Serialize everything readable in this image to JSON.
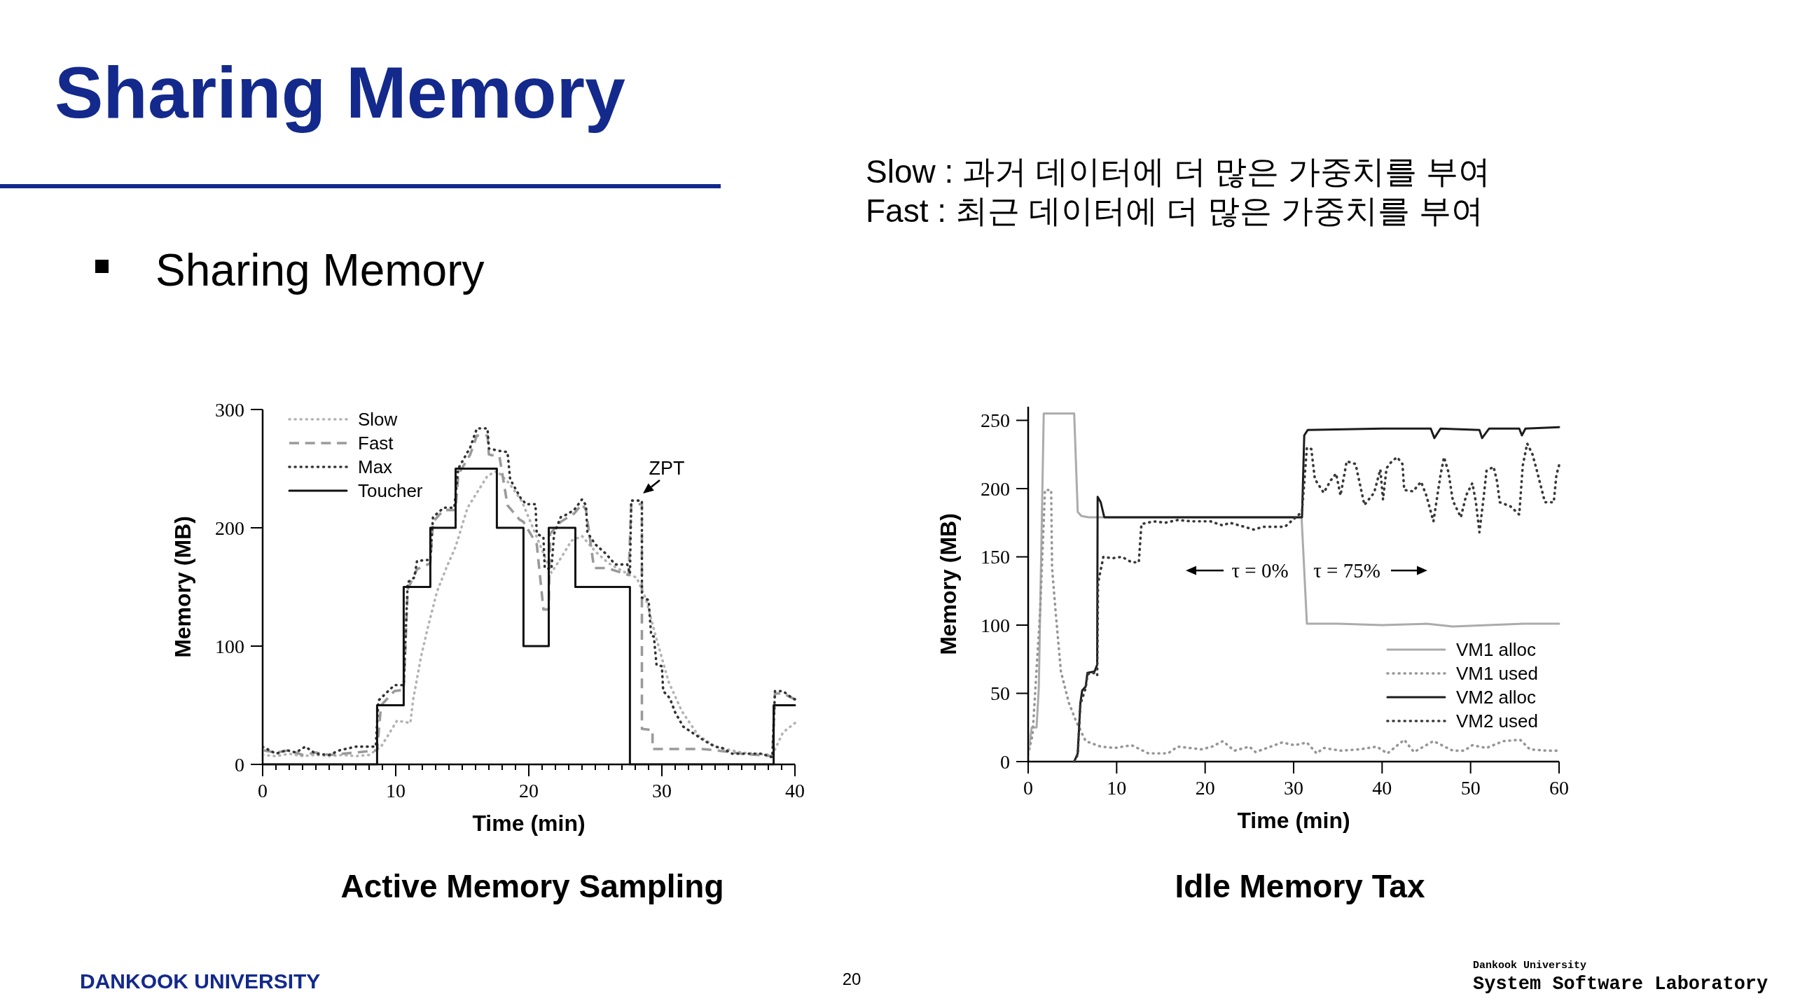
{
  "chart_data": [
    {
      "type": "other",
      "title": "Sharing Memory",
      "annotations": [
        "Sharing Memory",
        "Slow : 과거 데이터에 더 많은 가중치를 부여",
        "Fast : 최근 데이터에 더 많은 가중치를 부여",
        "20",
        "DANKOOK UNIVERSITY",
        "Dankook University",
        "System Software Laboratory"
      ]
    },
    {
      "type": "line",
      "title": "Active Memory Sampling",
      "xlabel": "Time (min)",
      "ylabel": "Memory (MB)",
      "xlim": [
        0,
        40
      ],
      "ylim": [
        0,
        300
      ],
      "xticks": [
        0,
        {
          "value": 1,
          "label": null
        },
        {
          "value": 2,
          "label": null
        },
        {
          "value": 3,
          "label": null
        },
        {
          "value": 4,
          "label": null
        },
        {
          "value": 5,
          "label": null
        },
        {
          "value": 6,
          "label": null
        },
        {
          "value": 7,
          "label": null
        },
        {
          "value": 8,
          "label": null
        },
        {
          "value": 9,
          "label": null
        },
        10,
        {
          "value": 11,
          "label": null
        },
        {
          "value": 12,
          "label": null
        },
        {
          "value": 13,
          "label": null
        },
        {
          "value": 14,
          "label": null
        },
        {
          "value": 15,
          "label": null
        },
        {
          "value": 16,
          "label": null
        },
        {
          "value": 17,
          "label": null
        },
        {
          "value": 18,
          "label": null
        },
        {
          "value": 19,
          "label": null
        },
        20,
        {
          "value": 21,
          "label": null
        },
        {
          "value": 22,
          "label": null
        },
        {
          "value": 23,
          "label": null
        },
        {
          "value": 24,
          "label": null
        },
        {
          "value": 25,
          "label": null
        },
        {
          "value": 26,
          "label": null
        },
        {
          "value": 27,
          "label": null
        },
        {
          "value": 28,
          "label": null
        },
        {
          "value": 29,
          "label": null
        },
        30,
        {
          "value": 31,
          "label": null
        },
        {
          "value": 32,
          "label": null
        },
        {
          "value": 33,
          "label": null
        },
        {
          "value": 34,
          "label": null
        },
        {
          "value": 35,
          "label": null
        },
        {
          "value": 36,
          "label": null
        },
        {
          "value": 37,
          "label": null
        },
        {
          "value": 38,
          "label": null
        },
        {
          "value": 39,
          "label": null
        },
        40
      ],
      "yticks": [
        0,
        100,
        200,
        300
      ],
      "legend": "top left",
      "annotations": [
        "ZPT"
      ],
      "series": [
        {
          "name": "Slow",
          "color": "#b3b3b3",
          "line_style": "dotted",
          "x": [
            0,
            1,
            2,
            3,
            4,
            5,
            6,
            7,
            8,
            8.9,
            10.1,
            11.1,
            11.3,
            11.9,
            12.4,
            13.1,
            13.8,
            14.5,
            15.4,
            16.9,
            17.6,
            18.5,
            19.5,
            20.5,
            21.7,
            22.5,
            23.2,
            24,
            25,
            26,
            27.6,
            28.1,
            28.8,
            29.5,
            30.5,
            31.5,
            32.7,
            34,
            36,
            38.3,
            39.1,
            40
          ],
          "values": [
            8,
            7,
            9,
            7,
            8,
            7,
            8,
            7,
            8,
            15,
            37,
            35,
            54,
            91,
            115,
            146,
            166,
            184,
            217,
            244,
            248,
            238,
            222,
            195,
            162,
            176,
            189,
            193,
            180,
            170,
            160,
            158,
            140,
            110,
            70,
            45,
            25,
            15,
            10,
            8,
            27,
            35
          ]
        },
        {
          "name": "Fast",
          "color": "#9a9a9a",
          "line_style": "dashed",
          "x": [
            0,
            1,
            2,
            3,
            4,
            5,
            6,
            7,
            8.6,
            8.9,
            9.9,
            10.6,
            10.9,
            11.6,
            12.6,
            12.8,
            13.6,
            14.5,
            14.7,
            15.6,
            16.1,
            16.9,
            17.0,
            17.8,
            18.4,
            19.3,
            19.6,
            20.6,
            21.1,
            21.5,
            21.6,
            22.4,
            23.4,
            24.0,
            24.3,
            24.9,
            25.9,
            27.5,
            27.7,
            28.5,
            28.5,
            29.3,
            29.3,
            33.0,
            34,
            36,
            38.3,
            38.5,
            39.1,
            40
          ],
          "values": [
            12,
            10,
            12,
            8,
            10,
            8,
            9,
            10,
            12,
            50,
            62,
            63,
            148,
            165,
            170,
            205,
            215,
            215,
            245,
            262,
            278,
            278,
            262,
            260,
            219,
            207,
            205,
            186,
            131,
            131,
            195,
            205,
            212,
            220,
            215,
            166,
            166,
            160,
            220,
            220,
            30,
            29,
            13,
            13,
            12,
            9,
            7,
            60,
            60,
            55
          ]
        },
        {
          "name": "Max",
          "color": "#333333",
          "line_style": "dotted",
          "x": [
            0,
            0.5,
            1,
            1.8,
            2.5,
            3.2,
            4,
            5,
            5.8,
            7,
            8.5,
            8.7,
            9.9,
            10.6,
            10.9,
            11.4,
            11.6,
            12.6,
            12.8,
            13.6,
            14.4,
            14.7,
            15.6,
            16.1,
            16.9,
            17.0,
            17.8,
            18.4,
            18.6,
            19.4,
            19.8,
            20.5,
            20.6,
            21.1,
            21.2,
            21.7,
            21.9,
            22.4,
            22.8,
            23.4,
            24.0,
            24.3,
            24.4,
            25.0,
            25.8,
            26.5,
            27.4,
            27.6,
            27.7,
            28.5,
            28.5,
            29.0,
            29.2,
            29.4,
            29.6,
            30.0,
            30.1,
            30.6,
            31.0,
            31.6,
            32.4,
            33.2,
            34.0,
            34.5,
            35.3,
            37.5,
            38.3,
            38.5,
            39.1,
            39.8,
            40
          ],
          "values": [
            15,
            12,
            9,
            12,
            10,
            15,
            9,
            8,
            12,
            15,
            15,
            54,
            67,
            67,
            154,
            158,
            172,
            173,
            209,
            217,
            217,
            250,
            268,
            284,
            284,
            267,
            265,
            264,
            241,
            225,
            220,
            220,
            195,
            192,
            166,
            165,
            195,
            209,
            211,
            215,
            224,
            219,
            196,
            186,
            178,
            169,
            169,
            161,
            223,
            223,
            141,
            139,
            109,
            108,
            84,
            83,
            62,
            56,
            44,
            32,
            26,
            20,
            15,
            14,
            9,
            9,
            6,
            62,
            62,
            56,
            55
          ]
        },
        {
          "name": "Toucher",
          "color": "#111111",
          "line_style": "solid",
          "type": "step",
          "x": [
            0,
            8.6,
            10.6,
            12.6,
            14.5,
            17.6,
            19.6,
            21.5,
            23.5,
            27.6,
            38.4,
            40
          ],
          "values": [
            0,
            50,
            150,
            200,
            250,
            200,
            100,
            200,
            150,
            0,
            50,
            50
          ]
        }
      ]
    },
    {
      "type": "line",
      "title": "Idle Memory Tax",
      "xlabel": "Time (min)",
      "ylabel": "Memory (MB)",
      "xlim": [
        0,
        60
      ],
      "ylim": [
        0,
        260
      ],
      "xticks": [
        0,
        10,
        20,
        30,
        40,
        50,
        60
      ],
      "yticks": [
        0,
        50,
        100,
        150,
        200,
        250
      ],
      "legend": "bottom right",
      "annotations": [
        "τ = 0%",
        "τ = 75%"
      ],
      "series": [
        {
          "name": "VM1 alloc",
          "color": "#ababab",
          "line_style": "solid",
          "x": [
            0,
            0.4,
            0.95,
            1.2,
            1.76,
            5.2,
            5.6,
            6.0,
            6.8,
            8.0,
            30.9,
            31.5,
            35,
            40,
            45,
            48,
            52,
            56,
            60
          ],
          "values": [
            6,
            25,
            25,
            54,
            255,
            255,
            183,
            180,
            179,
            179,
            179,
            101,
            101,
            100,
            101,
            99,
            100,
            101,
            101
          ]
        },
        {
          "name": "VM1 used",
          "color": "#969696",
          "line_style": "dotted",
          "x": [
            0,
            0.5,
            1.35,
            1.9,
            2.6,
            2.7,
            3.1,
            3.7,
            4.6,
            5.45,
            6.5,
            8.2,
            9.8,
            11.7,
            13.6,
            15.8,
            16.9,
            19.6,
            20.8,
            22.0,
            23.3,
            25.0,
            25.7,
            28.7,
            30.1,
            31.5,
            32.6,
            33.4,
            35.3,
            37.5,
            39.4,
            40.6,
            42.5,
            43.6,
            45.8,
            48.0,
            49.3,
            50.2,
            51.8,
            53.7,
            55.6,
            56.7,
            58.6,
            59.7
          ],
          "values": [
            5,
            20,
            110,
            199,
            199,
            142,
            110,
            66,
            43,
            29,
            15,
            11,
            10,
            12,
            6,
            6,
            11,
            9,
            11,
            15,
            8,
            11,
            7,
            14,
            12,
            14,
            6,
            10,
            8,
            9,
            11,
            6,
            16,
            7,
            15,
            8,
            8,
            12,
            10,
            15,
            16,
            9,
            8,
            8
          ]
        },
        {
          "name": "VM2 alloc",
          "color": "#1c1c1c",
          "line_style": "solid",
          "x": [
            5.2,
            5.6,
            5.9,
            6.1,
            6.5,
            6.7,
            7.5,
            7.8,
            7.85,
            8.2,
            8.6,
            20,
            30.95,
            31.2,
            31.6,
            40,
            45.5,
            45.9,
            46.6,
            51.0,
            51.3,
            52.1,
            55.5,
            55.8,
            56.2,
            60
          ],
          "values": [
            0,
            6,
            43,
            52,
            55,
            65,
            66,
            71,
            194,
            190,
            179,
            179,
            179,
            239,
            243,
            244,
            244,
            237,
            244,
            243,
            237,
            244,
            244,
            239,
            244,
            245
          ]
        },
        {
          "name": "VM2 used",
          "color": "#383838",
          "line_style": "dotted",
          "x": [
            5.2,
            5.6,
            5.9,
            6.5,
            6.7,
            7.5,
            7.8,
            7.9,
            8.5,
            9.5,
            10.6,
            11.7,
            12.5,
            12.8,
            14.2,
            15.5,
            16.9,
            18.5,
            19.9,
            20.6,
            22.0,
            22.8,
            25.5,
            26.6,
            29.0,
            30.95,
            31.5,
            32.0,
            32.4,
            33.4,
            34.2,
            34.8,
            35.3,
            36.0,
            37.0,
            38.0,
            39.1,
            39.8,
            40.1,
            40.5,
            41.1,
            41.7,
            42.3,
            42.5,
            43.5,
            44.4,
            45.0,
            45.8,
            46.6,
            47.0,
            47.5,
            48.0,
            48.9,
            49.5,
            50.2,
            50.6,
            51.0,
            51.5,
            51.8,
            52.6,
            53.0,
            53.3,
            54.5,
            55.5,
            55.9,
            56.4,
            57.0,
            57.5,
            58.4,
            59.4,
            59.7,
            60
          ],
          "values": [
            0,
            5,
            42,
            54,
            64,
            65,
            63,
            131,
            150,
            149,
            150,
            146,
            146,
            174,
            176,
            175,
            177,
            176,
            176,
            176,
            173,
            175,
            170,
            172,
            172,
            183,
            230,
            229,
            207,
            197,
            206,
            211,
            195,
            220,
            218,
            188,
            197,
            214,
            192,
            215,
            220,
            223,
            218,
            199,
            198,
            205,
            195,
            176,
            210,
            223,
            212,
            191,
            179,
            195,
            204,
            190,
            168,
            195,
            213,
            216,
            205,
            190,
            187,
            181,
            217,
            233,
            225,
            213,
            190,
            190,
            210,
            217
          ]
        }
      ]
    }
  ]
}
